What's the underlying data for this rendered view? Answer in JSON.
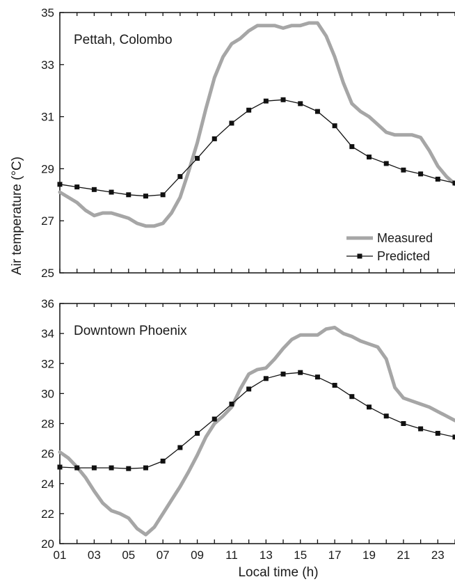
{
  "chart_data": [
    {
      "type": "line",
      "title": "Pettah, Colombo",
      "xlabel": "Local time (h)",
      "ylabel": "Air temperature (°C)",
      "xlim": [
        1,
        24
      ],
      "ylim": [
        25,
        35
      ],
      "x_ticks": [
        1,
        3,
        5,
        7,
        9,
        11,
        13,
        15,
        17,
        19,
        21,
        23
      ],
      "y_ticks": [
        25,
        27,
        29,
        31,
        33,
        35
      ],
      "legend": {
        "placement": "bottom-right"
      },
      "series": [
        {
          "name": "Measured",
          "color": "#a6a6a6",
          "style": "thick-line",
          "x": [
            1,
            1.5,
            2,
            2.5,
            3,
            3.5,
            4,
            4.5,
            5,
            5.5,
            6,
            6.5,
            7,
            7.5,
            8,
            8.5,
            9,
            9.5,
            10,
            10.5,
            11,
            11.5,
            12,
            12.5,
            13,
            13.5,
            14,
            14.5,
            15,
            15.5,
            16,
            16.5,
            17,
            17.5,
            18,
            18.5,
            19,
            19.5,
            20,
            20.5,
            21,
            21.5,
            22,
            22.5,
            23,
            23.5,
            24
          ],
          "y": [
            28.1,
            27.9,
            27.7,
            27.4,
            27.2,
            27.3,
            27.3,
            27.2,
            27.1,
            26.9,
            26.8,
            26.8,
            26.9,
            27.3,
            27.9,
            28.9,
            30.0,
            31.3,
            32.5,
            33.3,
            33.8,
            34.0,
            34.3,
            34.5,
            34.5,
            34.5,
            34.4,
            34.5,
            34.5,
            34.6,
            34.6,
            34.1,
            33.3,
            32.3,
            31.5,
            31.2,
            31.0,
            30.7,
            30.4,
            30.3,
            30.3,
            30.3,
            30.2,
            29.7,
            29.1,
            28.7,
            28.4
          ]
        },
        {
          "name": "Predicted",
          "color": "#111111",
          "style": "line-with-square-markers",
          "x": [
            1,
            2,
            3,
            4,
            5,
            6,
            7,
            8,
            9,
            10,
            11,
            12,
            13,
            14,
            15,
            16,
            17,
            18,
            19,
            20,
            21,
            22,
            23,
            24
          ],
          "y": [
            28.4,
            28.3,
            28.2,
            28.1,
            28.0,
            27.95,
            28.0,
            28.7,
            29.4,
            30.15,
            30.75,
            31.25,
            31.6,
            31.65,
            31.5,
            31.2,
            30.65,
            29.85,
            29.45,
            29.2,
            28.95,
            28.8,
            28.6,
            28.45
          ]
        }
      ]
    },
    {
      "type": "line",
      "title": "Downtown Phoenix",
      "xlabel": "Local time (h)",
      "ylabel": "Air temperature (°C)",
      "xlim": [
        1,
        24
      ],
      "ylim": [
        20,
        36
      ],
      "x_ticks": [
        1,
        3,
        5,
        7,
        9,
        11,
        13,
        15,
        17,
        19,
        21,
        23
      ],
      "y_ticks": [
        20,
        22,
        24,
        26,
        28,
        30,
        32,
        34,
        36
      ],
      "series": [
        {
          "name": "Measured",
          "color": "#a6a6a6",
          "style": "thick-line",
          "x": [
            1,
            1.5,
            2,
            2.5,
            3,
            3.5,
            4,
            4.5,
            5,
            5.5,
            6,
            6.5,
            7,
            7.5,
            8,
            8.5,
            9,
            9.5,
            10,
            10.5,
            11,
            11.5,
            12,
            12.5,
            13,
            13.5,
            14,
            14.5,
            15,
            15.5,
            16,
            16.5,
            17,
            17.5,
            18,
            18.5,
            19,
            19.5,
            20,
            20.5,
            21,
            21.5,
            22,
            22.5,
            23,
            23.5,
            24
          ],
          "y": [
            26.1,
            25.7,
            25.1,
            24.4,
            23.5,
            22.7,
            22.2,
            22.0,
            21.7,
            21.0,
            20.6,
            21.1,
            22.0,
            22.9,
            23.8,
            24.8,
            25.9,
            27.1,
            28.0,
            28.5,
            29.1,
            30.3,
            31.3,
            31.6,
            31.7,
            32.3,
            33.0,
            33.6,
            33.9,
            33.9,
            33.9,
            34.3,
            34.4,
            34.0,
            33.8,
            33.5,
            33.3,
            33.1,
            32.3,
            30.4,
            29.7,
            29.5,
            29.3,
            29.1,
            28.8,
            28.5,
            28.2
          ]
        },
        {
          "name": "Predicted",
          "color": "#111111",
          "style": "line-with-square-markers",
          "x": [
            1,
            2,
            3,
            4,
            5,
            6,
            7,
            8,
            9,
            10,
            11,
            12,
            13,
            14,
            15,
            16,
            17,
            18,
            19,
            20,
            21,
            22,
            23,
            24
          ],
          "y": [
            25.1,
            25.05,
            25.05,
            25.05,
            25.0,
            25.05,
            25.5,
            26.4,
            27.35,
            28.3,
            29.3,
            30.3,
            31.0,
            31.3,
            31.4,
            31.1,
            30.55,
            29.8,
            29.1,
            28.5,
            28.0,
            27.65,
            27.35,
            27.1
          ]
        }
      ]
    }
  ]
}
